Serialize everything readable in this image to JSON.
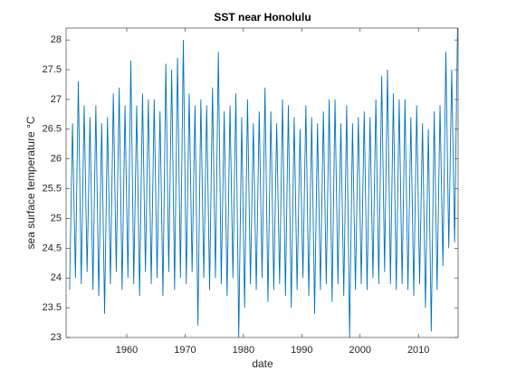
{
  "chart_data": {
    "type": "line",
    "title": "SST near Honolulu",
    "x_label": "date",
    "y_label": "sea surface temperature °C",
    "xlim": [
      1949.6,
      2016.8
    ],
    "xticks": [
      1960,
      1970,
      1980,
      1990,
      2000,
      2010
    ],
    "ylim": [
      23,
      28.2
    ],
    "yticks": [
      23,
      23.5,
      24,
      24.5,
      25,
      25.5,
      26,
      26.5,
      27,
      27.5,
      28
    ],
    "grid": false,
    "series": [
      {
        "name": "SST",
        "color": "#0072bd",
        "x": [
          1950.2,
          1950.7,
          1951.2,
          1951.7,
          1952.2,
          1952.7,
          1953.2,
          1953.7,
          1954.2,
          1954.7,
          1955.2,
          1955.7,
          1956.2,
          1956.7,
          1957.2,
          1957.7,
          1958.2,
          1958.7,
          1959.2,
          1959.7,
          1960.2,
          1960.7,
          1961.2,
          1961.7,
          1962.2,
          1962.7,
          1963.2,
          1963.7,
          1964.2,
          1964.7,
          1965.2,
          1965.7,
          1966.2,
          1966.7,
          1967.2,
          1967.7,
          1968.2,
          1968.7,
          1969.2,
          1969.7,
          1970.2,
          1970.7,
          1971.2,
          1971.7,
          1972.2,
          1972.7,
          1973.2,
          1973.7,
          1974.2,
          1974.7,
          1975.2,
          1975.7,
          1976.2,
          1976.7,
          1977.2,
          1977.7,
          1978.2,
          1978.7,
          1979.2,
          1979.7,
          1980.2,
          1980.7,
          1981.2,
          1981.7,
          1982.2,
          1982.7,
          1983.2,
          1983.7,
          1984.2,
          1984.7,
          1985.2,
          1985.7,
          1986.2,
          1986.7,
          1987.2,
          1987.7,
          1988.2,
          1988.7,
          1989.2,
          1989.7,
          1990.2,
          1990.7,
          1991.2,
          1991.7,
          1992.2,
          1992.7,
          1993.2,
          1993.7,
          1994.2,
          1994.7,
          1995.2,
          1995.7,
          1996.2,
          1996.7,
          1997.2,
          1997.7,
          1998.2,
          1998.7,
          1999.2,
          1999.7,
          2000.2,
          2000.7,
          2001.2,
          2001.7,
          2002.2,
          2002.7,
          2003.2,
          2003.7,
          2004.2,
          2004.7,
          2005.2,
          2005.7,
          2006.2,
          2006.7,
          2007.2,
          2007.7,
          2008.2,
          2008.7,
          2009.2,
          2009.7,
          2010.2,
          2010.7,
          2011.2,
          2011.7,
          2012.2,
          2012.7,
          2013.2,
          2013.7,
          2014.2,
          2014.7,
          2015.2,
          2015.7,
          2016.2,
          2016.7
        ],
        "values": [
          23.8,
          26.6,
          24.0,
          27.3,
          23.9,
          26.9,
          24.1,
          26.7,
          23.8,
          26.9,
          23.7,
          26.6,
          23.4,
          26.7,
          23.9,
          27.1,
          24.1,
          27.2,
          23.8,
          26.9,
          24.0,
          27.65,
          23.9,
          26.9,
          23.7,
          27.1,
          24.1,
          27.0,
          23.9,
          27.0,
          24.0,
          26.8,
          23.7,
          27.6,
          24.1,
          27.5,
          23.8,
          27.7,
          24.0,
          28.0,
          23.9,
          27.1,
          24.1,
          26.9,
          23.2,
          27.0,
          24.0,
          26.9,
          23.8,
          27.2,
          24.0,
          27.8,
          23.9,
          26.8,
          23.7,
          26.9,
          24.0,
          27.1,
          23.0,
          26.7,
          23.5,
          27.0,
          23.9,
          26.6,
          23.8,
          26.8,
          24.0,
          27.2,
          23.6,
          26.8,
          23.8,
          26.6,
          23.9,
          27.0,
          23.7,
          26.9,
          23.5,
          26.7,
          23.8,
          26.5,
          24.0,
          26.9,
          23.7,
          26.7,
          23.4,
          26.6,
          23.8,
          26.8,
          23.9,
          27.0,
          23.6,
          27.0,
          23.9,
          26.6,
          23.7,
          26.9,
          23.0,
          26.6,
          23.8,
          26.7,
          23.9,
          26.8,
          23.8,
          26.7,
          24.0,
          27.0,
          23.9,
          27.4,
          24.1,
          27.5,
          23.9,
          27.1,
          23.8,
          27.0,
          23.9,
          27.0,
          23.8,
          26.7,
          23.7,
          26.9,
          23.9,
          26.6,
          23.5,
          26.5,
          23.1,
          26.8,
          23.8,
          26.9,
          24.2,
          27.8,
          24.5,
          27.5,
          24.6,
          28.2
        ]
      }
    ]
  }
}
